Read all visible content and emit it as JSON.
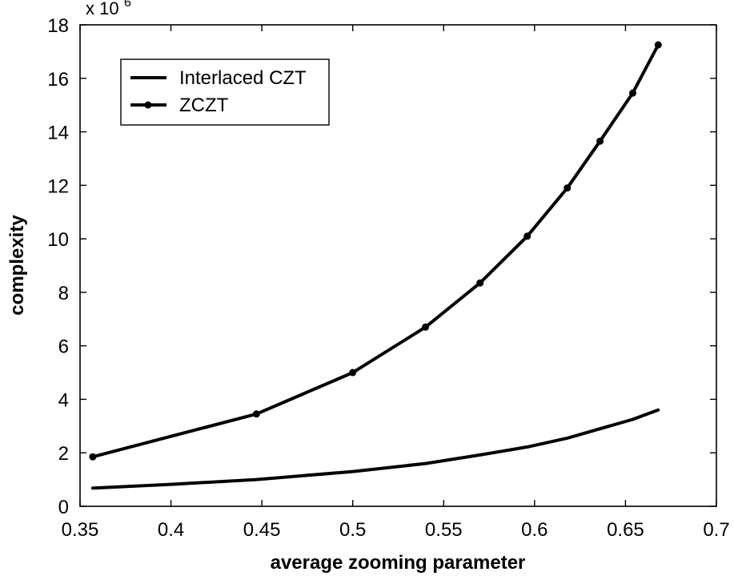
{
  "chart_data": {
    "type": "line",
    "xlabel": "average zooming parameter",
    "ylabel": "complexity",
    "y_scale_note": "x 10",
    "y_scale_exponent": "6",
    "xlim": [
      0.35,
      0.7
    ],
    "ylim": [
      0,
      18
    ],
    "x_ticks": [
      "0.35",
      "0.4",
      "0.45",
      "0.5",
      "0.55",
      "0.6",
      "0.65",
      "0.7"
    ],
    "y_ticks": [
      "0",
      "2",
      "4",
      "6",
      "8",
      "10",
      "12",
      "14",
      "16",
      "18"
    ],
    "x_tick_values": [
      0.35,
      0.4,
      0.45,
      0.5,
      0.55,
      0.6,
      0.65,
      0.7
    ],
    "y_tick_values": [
      0,
      2,
      4,
      6,
      8,
      10,
      12,
      14,
      16,
      18
    ],
    "legend_position": "top-left",
    "grid": false,
    "series": [
      {
        "name": "Interlaced CZT",
        "marker": "none",
        "x": [
          0.357,
          0.4,
          0.447,
          0.5,
          0.54,
          0.57,
          0.596,
          0.618,
          0.636,
          0.654,
          0.668
        ],
        "y": [
          0.68,
          0.82,
          1.0,
          1.3,
          1.6,
          1.92,
          2.22,
          2.55,
          2.9,
          3.25,
          3.6
        ]
      },
      {
        "name": "ZCZT",
        "marker": "dot",
        "x": [
          0.357,
          0.447,
          0.5,
          0.54,
          0.57,
          0.596,
          0.618,
          0.636,
          0.654,
          0.668
        ],
        "y": [
          1.85,
          3.45,
          5.0,
          6.7,
          8.35,
          10.1,
          11.9,
          13.65,
          15.45,
          17.25
        ]
      }
    ]
  }
}
